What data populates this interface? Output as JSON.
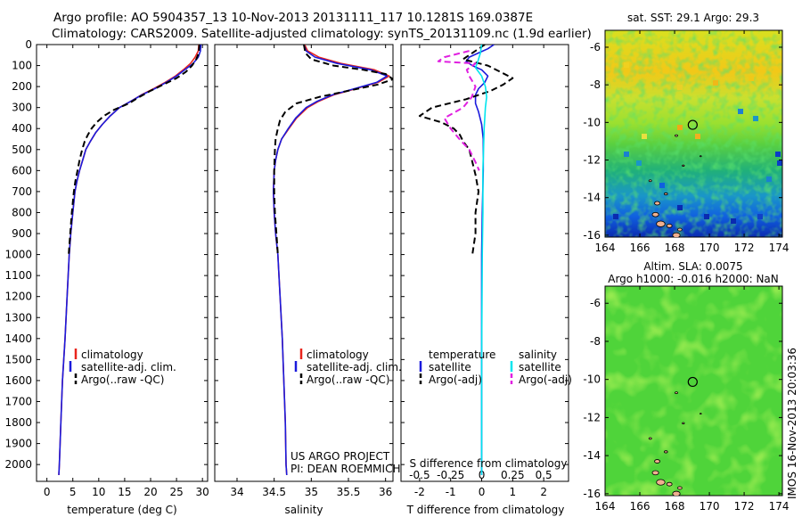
{
  "header": {
    "line1": "Argo profile: AO 5904357_13 10-Nov-2013 20131111_117 10.1281S 169.0387E",
    "line2": "Climatology: CARS2009. Satellite-adjusted climatology: synTS_20131109.nc (1.9d earlier)"
  },
  "side_text": "IMOS 16-Nov-2013 20:03:36",
  "colors": {
    "climatology": "#e8241c",
    "satellite": "#1a1adc",
    "argo": "#000000",
    "salinity_satellite": "#00e5ee",
    "salinity_argo": "#e020e0"
  },
  "chart_data": [
    {
      "type": "line",
      "xlabel": "temperature (deg C)",
      "ylabel": "",
      "xlim": [
        -2,
        31
      ],
      "ylim": [
        2080,
        0
      ],
      "x_ticks": [
        "0",
        "5",
        "10",
        "15",
        "20",
        "25",
        "30"
      ],
      "y_ticks": [
        "0",
        "100",
        "200",
        "300",
        "400",
        "500",
        "600",
        "700",
        "800",
        "900",
        "1000",
        "1100",
        "1200",
        "1300",
        "1400",
        "1500",
        "1600",
        "1700",
        "1800",
        "1900",
        "2000"
      ],
      "legend": [
        "climatology",
        "satellite-adj. clim.",
        "Argo(..raw -QC)"
      ],
      "series": [
        {
          "name": "climatology",
          "points": [
            [
              29.3,
              0
            ],
            [
              29.2,
              30
            ],
            [
              28.6,
              60
            ],
            [
              27.7,
              90
            ],
            [
              26.3,
              120
            ],
            [
              24.8,
              150
            ],
            [
              22.8,
              180
            ],
            [
              20.6,
              210
            ],
            [
              18.2,
              240
            ],
            [
              16.2,
              270
            ],
            [
              14.0,
              300
            ],
            [
              12.2,
              340
            ],
            [
              10.7,
              380
            ],
            [
              9.4,
              420
            ],
            [
              8.4,
              460
            ],
            [
              7.5,
              500
            ],
            [
              6.9,
              550
            ],
            [
              6.3,
              600
            ],
            [
              5.8,
              650
            ],
            [
              5.4,
              700
            ],
            [
              5.0,
              800
            ],
            [
              4.6,
              900
            ],
            [
              4.3,
              1000
            ],
            [
              3.9,
              1200
            ],
            [
              3.5,
              1400
            ],
            [
              3.0,
              1600
            ],
            [
              2.7,
              1800
            ],
            [
              2.4,
              2000
            ],
            [
              2.3,
              2050
            ]
          ]
        },
        {
          "name": "satellite-adj. clim.",
          "points": [
            [
              29.7,
              0
            ],
            [
              29.6,
              30
            ],
            [
              29.2,
              60
            ],
            [
              28.2,
              90
            ],
            [
              26.6,
              120
            ],
            [
              25.0,
              150
            ],
            [
              23.0,
              180
            ],
            [
              20.8,
              210
            ],
            [
              18.3,
              240
            ],
            [
              16.2,
              270
            ],
            [
              14.0,
              300
            ],
            [
              12.2,
              340
            ],
            [
              10.7,
              380
            ],
            [
              9.4,
              420
            ],
            [
              8.4,
              460
            ],
            [
              7.5,
              500
            ],
            [
              6.9,
              550
            ],
            [
              6.3,
              600
            ],
            [
              5.8,
              650
            ],
            [
              5.4,
              700
            ],
            [
              5.0,
              800
            ],
            [
              4.6,
              900
            ],
            [
              4.3,
              1000
            ],
            [
              3.9,
              1200
            ],
            [
              3.5,
              1400
            ],
            [
              3.0,
              1600
            ],
            [
              2.7,
              1800
            ],
            [
              2.4,
              2000
            ],
            [
              2.3,
              2050
            ]
          ]
        },
        {
          "name": "Argo(..raw -QC)",
          "points": [
            [
              29.4,
              0
            ],
            [
              29.3,
              40
            ],
            [
              28.8,
              70
            ],
            [
              28.0,
              100
            ],
            [
              26.8,
              130
            ],
            [
              25.0,
              160
            ],
            [
              22.5,
              190
            ],
            [
              20.0,
              220
            ],
            [
              17.8,
              250
            ],
            [
              15.8,
              280
            ],
            [
              13.0,
              310
            ],
            [
              11.0,
              340
            ],
            [
              9.6,
              370
            ],
            [
              8.6,
              400
            ],
            [
              7.9,
              430
            ],
            [
              7.3,
              460
            ],
            [
              6.8,
              500
            ],
            [
              6.3,
              550
            ],
            [
              5.9,
              600
            ],
            [
              5.5,
              650
            ],
            [
              5.2,
              700
            ],
            [
              4.8,
              800
            ],
            [
              4.5,
              900
            ],
            [
              4.2,
              1000
            ]
          ]
        }
      ]
    },
    {
      "type": "line",
      "xlabel": "salinity",
      "ylabel": "",
      "xlim": [
        33.7,
        36.1
      ],
      "ylim": [
        2080,
        0
      ],
      "x_ticks": [
        "34",
        "34.5",
        "35",
        "35.5",
        "36"
      ],
      "legend": [
        "climatology",
        "satellite-adj. clim.",
        "Argo(..raw -QC)"
      ],
      "annotation": [
        "US ARGO PROJECT",
        "PI: DEAN ROEMMICH"
      ],
      "series": [
        {
          "name": "climatology",
          "points": [
            [
              34.91,
              0
            ],
            [
              34.95,
              30
            ],
            [
              35.1,
              60
            ],
            [
              35.4,
              90
            ],
            [
              35.85,
              120
            ],
            [
              36.05,
              150
            ],
            [
              35.9,
              180
            ],
            [
              35.6,
              210
            ],
            [
              35.3,
              240
            ],
            [
              35.1,
              270
            ],
            [
              34.95,
              300
            ],
            [
              34.8,
              350
            ],
            [
              34.7,
              400
            ],
            [
              34.6,
              450
            ],
            [
              34.55,
              500
            ],
            [
              34.52,
              550
            ],
            [
              34.5,
              600
            ],
            [
              34.49,
              700
            ],
            [
              34.5,
              800
            ],
            [
              34.52,
              900
            ],
            [
              34.55,
              1000
            ],
            [
              34.58,
              1200
            ],
            [
              34.61,
              1400
            ],
            [
              34.63,
              1600
            ],
            [
              34.65,
              1800
            ],
            [
              34.66,
              2000
            ],
            [
              34.67,
              2050
            ]
          ]
        },
        {
          "name": "satellite-adj. clim.",
          "points": [
            [
              34.9,
              0
            ],
            [
              34.93,
              30
            ],
            [
              35.05,
              60
            ],
            [
              35.35,
              90
            ],
            [
              35.8,
              120
            ],
            [
              36.02,
              150
            ],
            [
              35.88,
              180
            ],
            [
              35.58,
              210
            ],
            [
              35.28,
              240
            ],
            [
              35.08,
              270
            ],
            [
              34.93,
              300
            ],
            [
              34.79,
              350
            ],
            [
              34.69,
              400
            ],
            [
              34.6,
              450
            ],
            [
              34.55,
              500
            ],
            [
              34.52,
              550
            ],
            [
              34.5,
              600
            ],
            [
              34.49,
              700
            ],
            [
              34.5,
              800
            ],
            [
              34.52,
              900
            ],
            [
              34.55,
              1000
            ],
            [
              34.58,
              1200
            ],
            [
              34.61,
              1400
            ],
            [
              34.63,
              1600
            ],
            [
              34.65,
              1800
            ],
            [
              34.66,
              2000
            ],
            [
              34.67,
              2050
            ]
          ]
        },
        {
          "name": "Argo(..raw -QC)",
          "points": [
            [
              34.9,
              0
            ],
            [
              34.92,
              40
            ],
            [
              35.0,
              70
            ],
            [
              35.3,
              100
            ],
            [
              35.7,
              120
            ],
            [
              36.0,
              140
            ],
            [
              36.1,
              165
            ],
            [
              35.9,
              190
            ],
            [
              35.5,
              220
            ],
            [
              35.1,
              250
            ],
            [
              34.8,
              280
            ],
            [
              34.65,
              320
            ],
            [
              34.58,
              360
            ],
            [
              34.55,
              400
            ],
            [
              34.52,
              450
            ],
            [
              34.51,
              500
            ],
            [
              34.5,
              600
            ],
            [
              34.5,
              700
            ],
            [
              34.51,
              800
            ],
            [
              34.53,
              900
            ],
            [
              34.55,
              1000
            ]
          ]
        }
      ]
    },
    {
      "type": "line",
      "xlabel": "T difference from climatology",
      "ylabel": "",
      "xlim": [
        -2.6,
        2.8
      ],
      "ylim": [
        2080,
        0
      ],
      "x_ticks": [
        "-2",
        "-1",
        "0",
        "1",
        "2"
      ],
      "secondary_xlabel": "S difference from climatology",
      "secondary_x_ticks": [
        "-0.5",
        "-0.25",
        "0",
        "0.25",
        "0.5"
      ],
      "legend_titles": [
        "temperature",
        "salinity"
      ],
      "legend": [
        "satellite",
        "Argo(-adj)",
        "satellite",
        "Argo(-adj)"
      ],
      "series": [
        {
          "name": "temperature satellite",
          "points": [
            [
              0.4,
              0
            ],
            [
              0.2,
              20
            ],
            [
              -0.1,
              40
            ],
            [
              -0.4,
              60
            ],
            [
              -0.5,
              80
            ],
            [
              -0.3,
              100
            ],
            [
              0.0,
              120
            ],
            [
              0.2,
              150
            ],
            [
              0.1,
              180
            ],
            [
              -0.1,
              210
            ],
            [
              -0.2,
              240
            ],
            [
              -0.2,
              280
            ],
            [
              -0.1,
              320
            ],
            [
              0.0,
              380
            ],
            [
              0.05,
              450
            ],
            [
              0.05,
              600
            ],
            [
              0.02,
              800
            ],
            [
              0.0,
              1000
            ],
            [
              0.0,
              1500
            ],
            [
              0.0,
              2050
            ]
          ]
        },
        {
          "name": "temperature Argo(-adj)",
          "points": [
            [
              0.1,
              0
            ],
            [
              -0.3,
              40
            ],
            [
              -0.6,
              70
            ],
            [
              0.2,
              100
            ],
            [
              0.6,
              130
            ],
            [
              1.0,
              160
            ],
            [
              0.7,
              190
            ],
            [
              0.3,
              220
            ],
            [
              -0.5,
              260
            ],
            [
              -1.6,
              300
            ],
            [
              -2.0,
              340
            ],
            [
              -1.3,
              370
            ],
            [
              -0.9,
              400
            ],
            [
              -0.7,
              430
            ],
            [
              -0.6,
              460
            ],
            [
              -0.4,
              500
            ],
            [
              -0.3,
              560
            ],
            [
              -0.2,
              620
            ],
            [
              -0.1,
              700
            ],
            [
              -0.2,
              800
            ],
            [
              -0.2,
              900
            ],
            [
              -0.3,
              1000
            ]
          ]
        },
        {
          "name": "salinity satellite",
          "points": [
            [
              0.0,
              0
            ],
            [
              -0.01,
              40
            ],
            [
              -0.03,
              80
            ],
            [
              -0.05,
              110
            ],
            [
              0.0,
              150
            ],
            [
              0.03,
              200
            ],
            [
              0.04,
              250
            ],
            [
              0.03,
              300
            ],
            [
              0.02,
              400
            ],
            [
              0.01,
              600
            ],
            [
              0.01,
              800
            ],
            [
              0.005,
              1000
            ],
            [
              0.0,
              1500
            ],
            [
              0.0,
              2050
            ]
          ]
        },
        {
          "name": "salinity Argo(-adj)",
          "points": [
            [
              -0.1,
              30
            ],
            [
              -0.3,
              60
            ],
            [
              -0.35,
              80
            ],
            [
              -0.05,
              90
            ],
            [
              -0.12,
              120
            ],
            [
              -0.1,
              150
            ],
            [
              -0.05,
              200
            ],
            [
              -0.08,
              250
            ],
            [
              -0.15,
              300
            ],
            [
              -0.3,
              350
            ],
            [
              -0.25,
              400
            ],
            [
              -0.18,
              450
            ],
            [
              -0.1,
              500
            ],
            [
              -0.05,
              560
            ],
            [
              -0.02,
              600
            ]
          ]
        }
      ]
    },
    {
      "type": "heatmap",
      "title": "sat. SST: 29.1 Argo: 29.3",
      "xlim": [
        164,
        174.2
      ],
      "ylim": [
        -16.1,
        -5.1
      ],
      "x_ticks": [
        "164",
        "166",
        "168",
        "170",
        "172",
        "174"
      ],
      "y_ticks": [
        "-6",
        "-8",
        "-10",
        "-12",
        "-14",
        "-16"
      ],
      "marker": [
        169.04,
        -10.13
      ]
    },
    {
      "type": "heatmap",
      "title": [
        "Altim. SLA: 0.0075",
        "Argo h1000: -0.016 h2000: NaN"
      ],
      "xlim": [
        164,
        174.2
      ],
      "ylim": [
        -16.1,
        -5.1
      ],
      "x_ticks": [
        "164",
        "166",
        "168",
        "170",
        "172",
        "174"
      ],
      "y_ticks": [
        "-6",
        "-8",
        "-10",
        "-12",
        "-14",
        "-16"
      ],
      "marker": [
        169.04,
        -10.13
      ]
    }
  ]
}
